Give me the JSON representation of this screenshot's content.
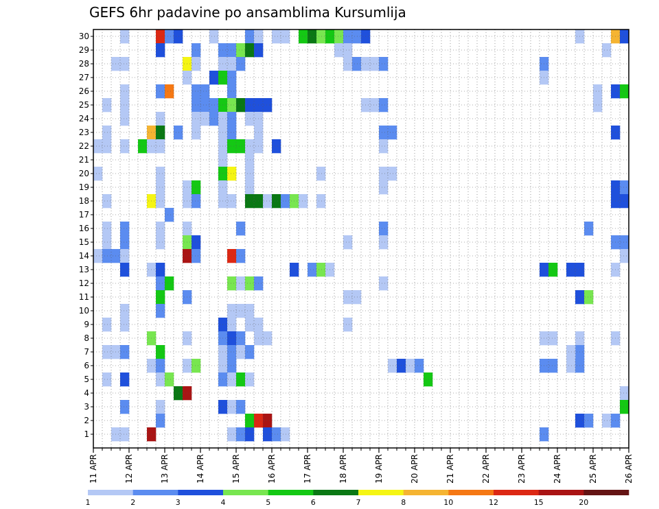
{
  "title": "GEFS 6hr padavine po ansamblima Kursumlija",
  "chart_data": {
    "type": "heatmap",
    "title": "GEFS 6hr padavine po ansamblima Kursumlija",
    "x_tick_labels": [
      "11 APR",
      "12 APR",
      "13 APR",
      "14 APR",
      "15 APR",
      "16 APR",
      "17 APR",
      "18 APR",
      "19 APR",
      "20 APR",
      "21 APR",
      "22 APR",
      "23 APR",
      "24 APR",
      "25 APR",
      "26 APR"
    ],
    "x_steps_per_tick": 4,
    "x_total_steps": 60,
    "y_range": [
      1,
      30
    ],
    "y_tick_labels": [
      "1",
      "2",
      "3",
      "4",
      "5",
      "6",
      "7",
      "8",
      "9",
      "10",
      "11",
      "12",
      "13",
      "14",
      "15",
      "16",
      "17",
      "18",
      "19",
      "20",
      "21",
      "22",
      "23",
      "24",
      "25",
      "26",
      "27",
      "28",
      "29",
      "30"
    ],
    "grid": "dotted",
    "colorbar": {
      "labels": [
        "1",
        "2",
        "3",
        "4",
        "5",
        "6",
        "7",
        "8",
        "10",
        "12",
        "15",
        "20"
      ],
      "colors": [
        "#b4c8f5",
        "#5b8cf0",
        "#1f50dc",
        "#78e650",
        "#14c814",
        "#0a7814",
        "#f5f514",
        "#f5b432",
        "#f57814",
        "#dc2814",
        "#aa1414",
        "#641414"
      ]
    },
    "cells": [
      [
        30,
        3,
        0
      ],
      [
        30,
        7,
        9
      ],
      [
        30,
        8,
        1
      ],
      [
        30,
        9,
        2
      ],
      [
        30,
        13,
        0
      ],
      [
        30,
        17,
        1
      ],
      [
        30,
        18,
        0
      ],
      [
        30,
        20,
        0
      ],
      [
        30,
        21,
        0
      ],
      [
        30,
        23,
        4
      ],
      [
        30,
        24,
        5
      ],
      [
        30,
        25,
        3
      ],
      [
        30,
        26,
        4
      ],
      [
        30,
        27,
        3
      ],
      [
        30,
        28,
        1
      ],
      [
        30,
        29,
        1
      ],
      [
        30,
        30,
        2
      ],
      [
        30,
        54,
        0
      ],
      [
        30,
        58,
        7
      ],
      [
        30,
        59,
        2
      ],
      [
        29,
        7,
        2
      ],
      [
        29,
        11,
        1
      ],
      [
        29,
        14,
        1
      ],
      [
        29,
        15,
        1
      ],
      [
        29,
        16,
        3
      ],
      [
        29,
        17,
        5
      ],
      [
        29,
        18,
        2
      ],
      [
        29,
        27,
        0
      ],
      [
        29,
        28,
        0
      ],
      [
        29,
        57,
        0
      ],
      [
        28,
        2,
        0
      ],
      [
        28,
        3,
        0
      ],
      [
        28,
        10,
        6
      ],
      [
        28,
        11,
        0
      ],
      [
        28,
        14,
        0
      ],
      [
        28,
        15,
        0
      ],
      [
        28,
        16,
        1
      ],
      [
        28,
        28,
        0
      ],
      [
        28,
        29,
        1
      ],
      [
        28,
        30,
        0
      ],
      [
        28,
        31,
        0
      ],
      [
        28,
        32,
        1
      ],
      [
        28,
        50,
        1
      ],
      [
        27,
        10,
        0
      ],
      [
        27,
        13,
        2
      ],
      [
        27,
        14,
        4
      ],
      [
        27,
        15,
        1
      ],
      [
        27,
        50,
        0
      ],
      [
        26,
        3,
        0
      ],
      [
        26,
        7,
        1
      ],
      [
        26,
        8,
        8
      ],
      [
        26,
        11,
        1
      ],
      [
        26,
        12,
        1
      ],
      [
        26,
        15,
        1
      ],
      [
        26,
        56,
        0
      ],
      [
        26,
        58,
        2
      ],
      [
        26,
        59,
        4
      ],
      [
        25,
        1,
        0
      ],
      [
        25,
        3,
        0
      ],
      [
        25,
        11,
        1
      ],
      [
        25,
        12,
        1
      ],
      [
        25,
        13,
        1
      ],
      [
        25,
        14,
        4
      ],
      [
        25,
        15,
        3
      ],
      [
        25,
        16,
        5
      ],
      [
        25,
        17,
        2
      ],
      [
        25,
        18,
        2
      ],
      [
        25,
        19,
        2
      ],
      [
        25,
        30,
        0
      ],
      [
        25,
        31,
        0
      ],
      [
        25,
        32,
        1
      ],
      [
        25,
        56,
        0
      ],
      [
        24,
        3,
        0
      ],
      [
        24,
        7,
        0
      ],
      [
        24,
        11,
        0
      ],
      [
        24,
        12,
        0
      ],
      [
        24,
        13,
        1
      ],
      [
        24,
        14,
        0
      ],
      [
        24,
        15,
        1
      ],
      [
        24,
        17,
        0
      ],
      [
        24,
        18,
        0
      ],
      [
        23,
        1,
        0
      ],
      [
        23,
        6,
        7
      ],
      [
        23,
        7,
        5
      ],
      [
        23,
        9,
        1
      ],
      [
        23,
        11,
        0
      ],
      [
        23,
        14,
        0
      ],
      [
        23,
        15,
        1
      ],
      [
        23,
        18,
        0
      ],
      [
        23,
        32,
        1
      ],
      [
        23,
        33,
        1
      ],
      [
        23,
        58,
        2
      ],
      [
        22,
        0,
        0
      ],
      [
        22,
        1,
        0
      ],
      [
        22,
        3,
        0
      ],
      [
        22,
        5,
        4
      ],
      [
        22,
        6,
        0
      ],
      [
        22,
        7,
        0
      ],
      [
        22,
        14,
        0
      ],
      [
        22,
        15,
        4
      ],
      [
        22,
        16,
        4
      ],
      [
        22,
        17,
        0
      ],
      [
        22,
        18,
        0
      ],
      [
        22,
        20,
        2
      ],
      [
        22,
        32,
        0
      ],
      [
        21,
        14,
        0
      ],
      [
        21,
        17,
        0
      ],
      [
        20,
        0,
        0
      ],
      [
        20,
        7,
        0
      ],
      [
        20,
        14,
        4
      ],
      [
        20,
        15,
        6
      ],
      [
        20,
        17,
        0
      ],
      [
        20,
        25,
        0
      ],
      [
        20,
        32,
        0
      ],
      [
        20,
        33,
        0
      ],
      [
        19,
        7,
        0
      ],
      [
        19,
        10,
        0
      ],
      [
        19,
        11,
        4
      ],
      [
        19,
        14,
        0
      ],
      [
        19,
        17,
        0
      ],
      [
        19,
        32,
        0
      ],
      [
        19,
        58,
        2
      ],
      [
        19,
        59,
        1
      ],
      [
        18,
        1,
        0
      ],
      [
        18,
        6,
        6
      ],
      [
        18,
        7,
        0
      ],
      [
        18,
        10,
        0
      ],
      [
        18,
        11,
        1
      ],
      [
        18,
        14,
        0
      ],
      [
        18,
        15,
        0
      ],
      [
        18,
        17,
        5
      ],
      [
        18,
        18,
        5
      ],
      [
        18,
        19,
        0
      ],
      [
        18,
        20,
        5
      ],
      [
        18,
        21,
        1
      ],
      [
        18,
        22,
        3
      ],
      [
        18,
        23,
        0
      ],
      [
        18,
        25,
        0
      ],
      [
        18,
        58,
        2
      ],
      [
        18,
        59,
        2
      ],
      [
        17,
        8,
        1
      ],
      [
        16,
        1,
        0
      ],
      [
        16,
        3,
        1
      ],
      [
        16,
        7,
        0
      ],
      [
        16,
        10,
        0
      ],
      [
        16,
        16,
        1
      ],
      [
        16,
        32,
        1
      ],
      [
        16,
        55,
        1
      ],
      [
        15,
        1,
        0
      ],
      [
        15,
        3,
        1
      ],
      [
        15,
        7,
        0
      ],
      [
        15,
        10,
        3
      ],
      [
        15,
        11,
        2
      ],
      [
        15,
        28,
        0
      ],
      [
        15,
        32,
        0
      ],
      [
        15,
        58,
        1
      ],
      [
        15,
        59,
        1
      ],
      [
        14,
        0,
        0
      ],
      [
        14,
        1,
        1
      ],
      [
        14,
        2,
        1
      ],
      [
        14,
        3,
        0
      ],
      [
        14,
        10,
        10
      ],
      [
        14,
        11,
        1
      ],
      [
        14,
        15,
        9
      ],
      [
        14,
        16,
        1
      ],
      [
        14,
        59,
        0
      ],
      [
        13,
        3,
        2
      ],
      [
        13,
        6,
        0
      ],
      [
        13,
        7,
        2
      ],
      [
        13,
        22,
        2
      ],
      [
        13,
        24,
        1
      ],
      [
        13,
        25,
        3
      ],
      [
        13,
        26,
        0
      ],
      [
        13,
        50,
        2
      ],
      [
        13,
        51,
        4
      ],
      [
        13,
        53,
        2
      ],
      [
        13,
        54,
        2
      ],
      [
        13,
        58,
        0
      ],
      [
        12,
        7,
        1
      ],
      [
        12,
        8,
        4
      ],
      [
        12,
        15,
        3
      ],
      [
        12,
        16,
        0
      ],
      [
        12,
        17,
        3
      ],
      [
        12,
        18,
        1
      ],
      [
        12,
        32,
        0
      ],
      [
        11,
        7,
        4
      ],
      [
        11,
        10,
        1
      ],
      [
        11,
        28,
        0
      ],
      [
        11,
        29,
        0
      ],
      [
        11,
        54,
        2
      ],
      [
        11,
        55,
        3
      ],
      [
        10,
        3,
        0
      ],
      [
        10,
        7,
        1
      ],
      [
        10,
        15,
        0
      ],
      [
        10,
        16,
        0
      ],
      [
        10,
        17,
        0
      ],
      [
        9,
        1,
        0
      ],
      [
        9,
        3,
        0
      ],
      [
        9,
        14,
        2
      ],
      [
        9,
        15,
        0
      ],
      [
        9,
        17,
        0
      ],
      [
        9,
        18,
        0
      ],
      [
        9,
        28,
        0
      ],
      [
        8,
        6,
        3
      ],
      [
        8,
        10,
        0
      ],
      [
        8,
        14,
        1
      ],
      [
        8,
        15,
        2
      ],
      [
        8,
        16,
        1
      ],
      [
        8,
        18,
        0
      ],
      [
        8,
        19,
        0
      ],
      [
        8,
        50,
        0
      ],
      [
        8,
        51,
        0
      ],
      [
        8,
        54,
        0
      ],
      [
        8,
        58,
        0
      ],
      [
        7,
        1,
        0
      ],
      [
        7,
        2,
        0
      ],
      [
        7,
        3,
        1
      ],
      [
        7,
        7,
        4
      ],
      [
        7,
        14,
        0
      ],
      [
        7,
        15,
        1
      ],
      [
        7,
        16,
        0
      ],
      [
        7,
        17,
        1
      ],
      [
        7,
        54,
        1
      ],
      [
        7,
        53,
        0
      ],
      [
        6,
        6,
        0
      ],
      [
        6,
        7,
        1
      ],
      [
        6,
        10,
        0
      ],
      [
        6,
        11,
        3
      ],
      [
        6,
        14,
        0
      ],
      [
        6,
        15,
        1
      ],
      [
        6,
        33,
        0
      ],
      [
        6,
        34,
        2
      ],
      [
        6,
        35,
        0
      ],
      [
        6,
        36,
        1
      ],
      [
        6,
        50,
        1
      ],
      [
        6,
        51,
        1
      ],
      [
        6,
        53,
        0
      ],
      [
        6,
        54,
        1
      ],
      [
        5,
        1,
        0
      ],
      [
        5,
        3,
        2
      ],
      [
        5,
        7,
        0
      ],
      [
        5,
        8,
        3
      ],
      [
        5,
        14,
        1
      ],
      [
        5,
        15,
        0
      ],
      [
        5,
        16,
        4
      ],
      [
        5,
        17,
        0
      ],
      [
        5,
        37,
        4
      ],
      [
        4,
        9,
        5
      ],
      [
        4,
        10,
        10
      ],
      [
        4,
        59,
        0
      ],
      [
        3,
        3,
        1
      ],
      [
        3,
        7,
        0
      ],
      [
        3,
        14,
        2
      ],
      [
        3,
        15,
        0
      ],
      [
        3,
        16,
        1
      ],
      [
        3,
        59,
        4
      ],
      [
        2,
        7,
        1
      ],
      [
        2,
        17,
        4
      ],
      [
        2,
        18,
        9
      ],
      [
        2,
        19,
        10
      ],
      [
        2,
        54,
        2
      ],
      [
        2,
        55,
        1
      ],
      [
        2,
        57,
        0
      ],
      [
        2,
        58,
        1
      ],
      [
        1,
        2,
        0
      ],
      [
        1,
        3,
        0
      ],
      [
        1,
        6,
        10
      ],
      [
        1,
        15,
        0
      ],
      [
        1,
        16,
        1
      ],
      [
        1,
        17,
        2
      ],
      [
        1,
        19,
        2
      ],
      [
        1,
        20,
        1
      ],
      [
        1,
        21,
        0
      ],
      [
        1,
        50,
        1
      ]
    ]
  }
}
